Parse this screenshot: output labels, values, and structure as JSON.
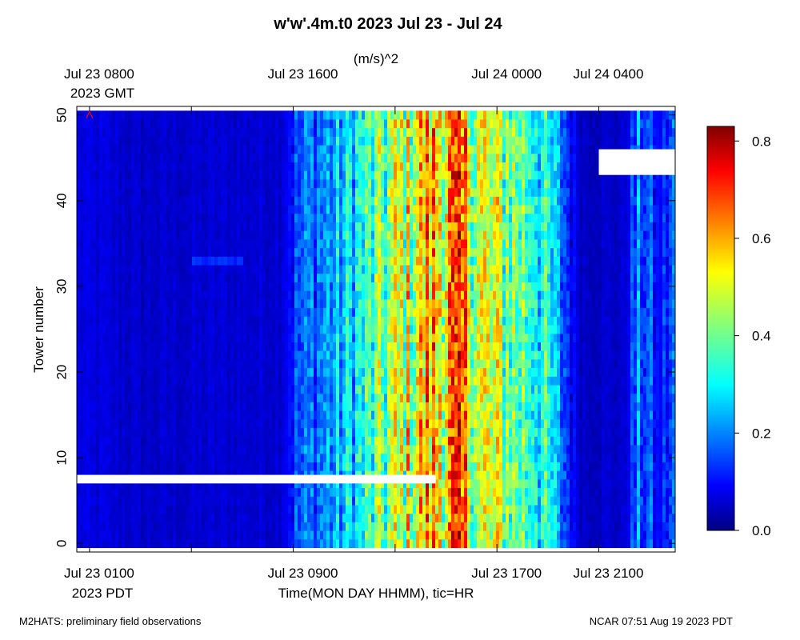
{
  "chart_data": {
    "type": "heatmap",
    "title": "w'w'.4m.t0 2023 Jul 23 - Jul 24",
    "units": "(m/s)^2",
    "ylabel": "Tower number",
    "xlabel": "Time(MON DAY HHMM), tic=HR",
    "ylim": [
      -1,
      51
    ],
    "yticks": [
      "0",
      "10",
      "20",
      "30",
      "40",
      "50"
    ],
    "ytick_values": [
      0,
      10,
      20,
      30,
      40,
      50
    ],
    "xlim_hours_pdt": [
      0.5,
      24.0
    ],
    "top_axis": {
      "timezone_label": "2023 GMT",
      "ticks": [
        {
          "hour": 1,
          "label": "Jul 23 0800"
        },
        {
          "hour": 9,
          "label": "Jul 23 1600"
        },
        {
          "hour": 17,
          "label": "Jul 24 0000"
        },
        {
          "hour": 21,
          "label": "Jul 24 0400"
        }
      ]
    },
    "bottom_axis": {
      "timezone_label": "2023 PDT",
      "ticks": [
        {
          "hour": 1,
          "label": "Jul 23 0100"
        },
        {
          "hour": 9,
          "label": "Jul 23 0900"
        },
        {
          "hour": 17,
          "label": "Jul 23 1700"
        },
        {
          "hour": 21,
          "label": "Jul 23 2100"
        }
      ]
    },
    "colorbar": {
      "min": 0.0,
      "max": 0.83,
      "ticks": [
        "0.0",
        "0.2",
        "0.4",
        "0.6",
        "0.8"
      ],
      "tick_values": [
        0.0,
        0.2,
        0.4,
        0.6,
        0.8
      ]
    },
    "towers": [
      0,
      50
    ],
    "time_profile": [
      [
        0.5,
        0.08
      ],
      [
        3.0,
        0.06
      ],
      [
        8.5,
        0.07
      ],
      [
        9.2,
        0.16
      ],
      [
        11.0,
        0.26
      ],
      [
        12.0,
        0.34
      ],
      [
        13.0,
        0.44
      ],
      [
        14.2,
        0.55
      ],
      [
        15.6,
        0.58
      ],
      [
        16.3,
        0.48
      ],
      [
        17.2,
        0.44
      ],
      [
        18.5,
        0.36
      ],
      [
        19.2,
        0.26
      ],
      [
        19.8,
        0.14
      ],
      [
        20.3,
        0.06
      ],
      [
        22.0,
        0.06
      ],
      [
        22.6,
        0.2
      ],
      [
        23.4,
        0.1
      ],
      [
        24.0,
        0.18
      ]
    ],
    "missing_data": [
      {
        "t_start": 0.5,
        "t_end": 14.6,
        "tower_start": 7,
        "tower_end": 8
      },
      {
        "t_start": 21.0,
        "t_end": 24.0,
        "tower_start": 43,
        "tower_end": 46
      }
    ],
    "enhanced_band": {
      "t_start": 5.0,
      "t_end": 7.0,
      "tower": 33,
      "add": 0.07
    },
    "marker": {
      "symbol": "^",
      "hour": 1,
      "tower": 50,
      "color": "#ff0000"
    }
  },
  "footer": {
    "left": "M2HATS: preliminary field observations",
    "right": "NCAR 07:51 Aug 19 2023 PDT"
  }
}
